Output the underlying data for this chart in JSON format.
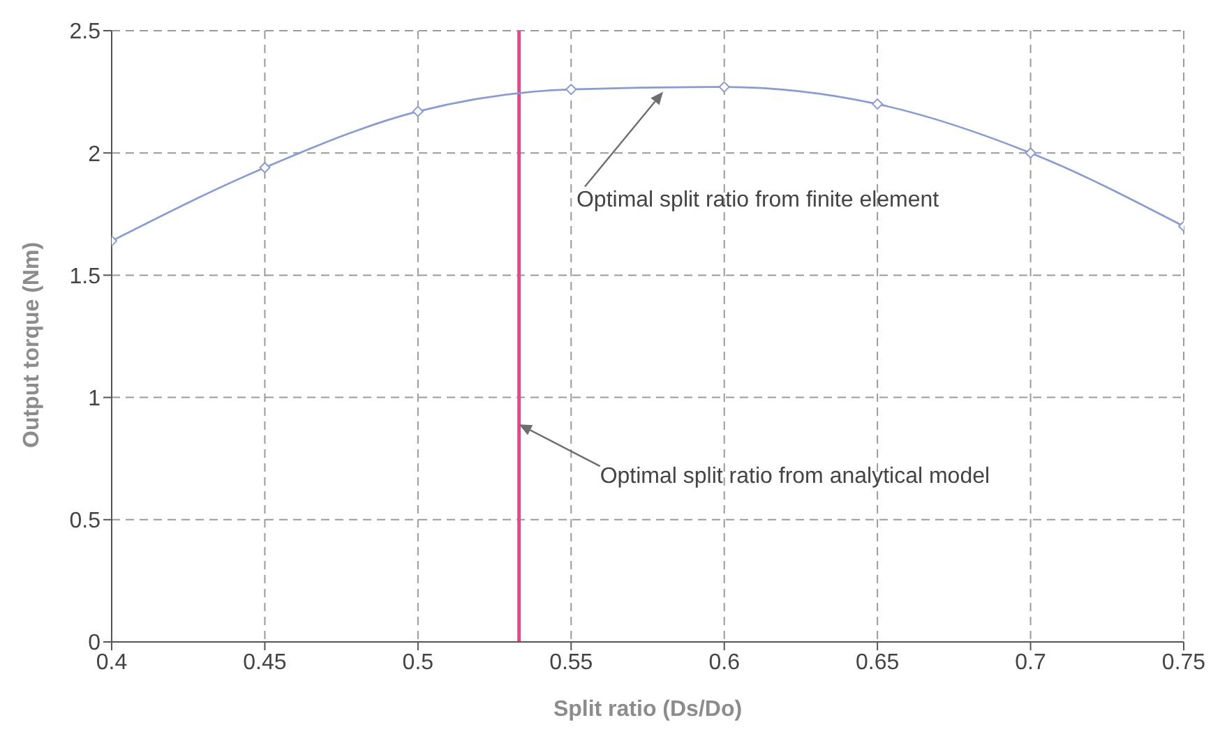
{
  "chart_data": {
    "type": "line",
    "xlabel": "Split ratio (Ds/Do)",
    "ylabel": "Output torque (Nm)",
    "x": [
      0.4,
      0.45,
      0.5,
      0.55,
      0.6,
      0.65,
      0.7,
      0.75
    ],
    "series": [
      {
        "color": "#8a9bd0",
        "values": [
          1.64,
          1.94,
          2.17,
          2.26,
          2.27,
          2.2,
          2.0,
          1.7
        ]
      }
    ],
    "xlim": [
      0.4,
      0.75
    ],
    "xticks": [
      0.4,
      0.45,
      0.5,
      0.55,
      0.6,
      0.65,
      0.7,
      0.75
    ],
    "ylim": [
      0,
      2.5
    ],
    "yticks": [
      0,
      0.5,
      1,
      1.5,
      2,
      2.5
    ],
    "ref_lines": [
      {
        "axis": "x",
        "value": 0.533,
        "color": "#e8458f"
      }
    ],
    "annotations": [
      {
        "text": "Optimal split ratio from finite element",
        "x": 0.58,
        "y": 2.25
      },
      {
        "text": "Optimal split ratio from analytical model",
        "x": 0.533,
        "y": 0.89
      }
    ],
    "grid": true,
    "marker": "diamond",
    "line_style": "solid",
    "legend": false
  }
}
